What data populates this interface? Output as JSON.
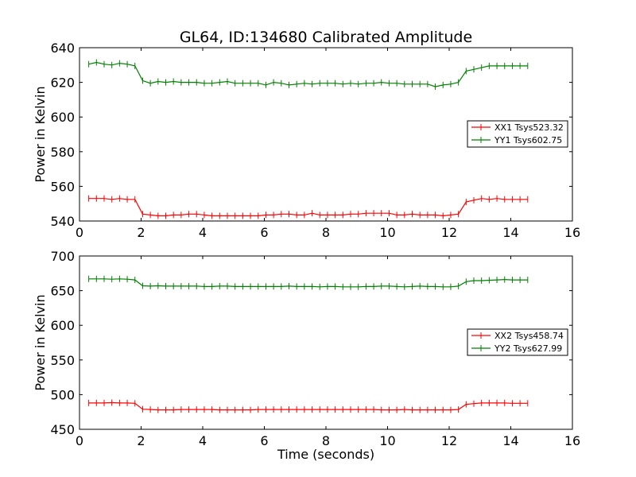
{
  "chart_data": [
    {
      "type": "line",
      "title": "GL64, ID:134680 Calibrated Amplitude",
      "xlabel": "",
      "ylabel": "Power in Kelvin",
      "xlim": [
        0,
        16
      ],
      "ylim": [
        540,
        640
      ],
      "xticks": [
        0,
        2,
        4,
        6,
        8,
        10,
        12,
        14,
        16
      ],
      "yticks": [
        540,
        560,
        580,
        600,
        620,
        640
      ],
      "x": [
        0.3,
        0.55,
        0.8,
        1.05,
        1.3,
        1.55,
        1.8,
        2.05,
        2.3,
        2.55,
        2.8,
        3.05,
        3.3,
        3.55,
        3.8,
        4.05,
        4.3,
        4.55,
        4.8,
        5.05,
        5.3,
        5.55,
        5.8,
        6.05,
        6.3,
        6.55,
        6.8,
        7.05,
        7.3,
        7.55,
        7.8,
        8.05,
        8.3,
        8.55,
        8.8,
        9.05,
        9.3,
        9.55,
        9.8,
        10.05,
        10.3,
        10.55,
        10.8,
        11.05,
        11.3,
        11.55,
        11.8,
        12.05,
        12.3,
        12.55,
        12.8,
        13.05,
        13.3,
        13.55,
        13.8,
        14.05,
        14.3,
        14.55
      ],
      "series": [
        {
          "name": "XX1 Tsys523.32",
          "color": "#ff0000",
          "values": [
            553,
            553,
            553,
            552.5,
            553,
            552.5,
            552.5,
            544,
            543.5,
            543,
            543,
            543.5,
            543.5,
            544,
            544,
            543.5,
            543,
            543,
            543,
            543,
            543,
            543,
            543,
            543.5,
            543.5,
            544,
            544,
            543.5,
            543.5,
            544.5,
            543.5,
            543.5,
            543.5,
            543.5,
            544,
            544,
            544.5,
            544.5,
            544.5,
            544.5,
            543.5,
            543.5,
            544,
            543.5,
            543.5,
            543.5,
            543,
            543.5,
            544,
            551,
            552,
            553,
            552.5,
            553,
            552.5,
            552.5,
            552.5,
            552.5
          ]
        },
        {
          "name": "YY1 Tsys602.75",
          "color": "#008000",
          "values": [
            630.5,
            631.5,
            630.5,
            630,
            631,
            630.5,
            629.5,
            621,
            619.5,
            620.5,
            620,
            620.5,
            620,
            620,
            620,
            619.5,
            619.5,
            620,
            620.5,
            619.5,
            619.5,
            619.5,
            619.5,
            618.5,
            620,
            619.5,
            618.5,
            619,
            619.5,
            619,
            619.5,
            619.5,
            619.5,
            619,
            619.5,
            619,
            619.5,
            619.5,
            620,
            619.5,
            619.5,
            619,
            619,
            619,
            619,
            617.5,
            618.5,
            619,
            620,
            626.5,
            627.5,
            628.5,
            629.5,
            629.5,
            629.5,
            629.5,
            629.5,
            629.5
          ]
        }
      ],
      "legend": "center-right"
    },
    {
      "type": "line",
      "title": "",
      "xlabel": "Time (seconds)",
      "ylabel": "Power in Kelvin",
      "xlim": [
        0,
        16
      ],
      "ylim": [
        450,
        700
      ],
      "xticks": [
        0,
        2,
        4,
        6,
        8,
        10,
        12,
        14,
        16
      ],
      "yticks": [
        450,
        500,
        550,
        600,
        650,
        700
      ],
      "x": [
        0.3,
        0.55,
        0.8,
        1.05,
        1.3,
        1.55,
        1.8,
        2.05,
        2.3,
        2.55,
        2.8,
        3.05,
        3.3,
        3.55,
        3.8,
        4.05,
        4.3,
        4.55,
        4.8,
        5.05,
        5.3,
        5.55,
        5.8,
        6.05,
        6.3,
        6.55,
        6.8,
        7.05,
        7.3,
        7.55,
        7.8,
        8.05,
        8.3,
        8.55,
        8.8,
        9.05,
        9.3,
        9.55,
        9.8,
        10.05,
        10.3,
        10.55,
        10.8,
        11.05,
        11.3,
        11.55,
        11.8,
        12.05,
        12.3,
        12.55,
        12.8,
        13.05,
        13.3,
        13.55,
        13.8,
        14.05,
        14.3,
        14.55
      ],
      "series": [
        {
          "name": "XX2 Tsys458.74",
          "color": "#ff0000",
          "values": [
            488,
            488,
            488,
            488.5,
            488,
            488,
            487.5,
            479,
            478.5,
            478,
            478,
            478,
            478.5,
            478.5,
            478.5,
            478.5,
            478.5,
            478,
            478,
            478,
            478,
            478,
            478.5,
            478.5,
            478.5,
            478.5,
            478.5,
            478.5,
            478.5,
            478.5,
            478.5,
            478.5,
            478.5,
            478.5,
            478.5,
            478.5,
            478.5,
            478.5,
            478,
            478,
            478,
            478.5,
            478,
            478,
            478,
            478,
            478,
            478,
            478.5,
            486,
            487,
            488,
            488,
            488,
            488,
            487.5,
            487.5,
            487.5
          ]
        },
        {
          "name": "YY2 Tsys627.99",
          "color": "#008000",
          "values": [
            667,
            667,
            667,
            666.5,
            667,
            666.5,
            665.5,
            657,
            656.5,
            657,
            656.5,
            656.5,
            656.5,
            656.5,
            656.5,
            656,
            656,
            656.5,
            656.5,
            656,
            656,
            656,
            656,
            656,
            656,
            656,
            656.5,
            656,
            656,
            656,
            655.5,
            656,
            656,
            655.5,
            655.5,
            655.5,
            656,
            656,
            656.5,
            656.5,
            656,
            655.5,
            656,
            656.5,
            656,
            656,
            655.5,
            655.5,
            656.5,
            663,
            664.5,
            664.5,
            665,
            665.5,
            666,
            665.5,
            665.5,
            665.5
          ]
        }
      ],
      "legend": "center-right"
    }
  ]
}
